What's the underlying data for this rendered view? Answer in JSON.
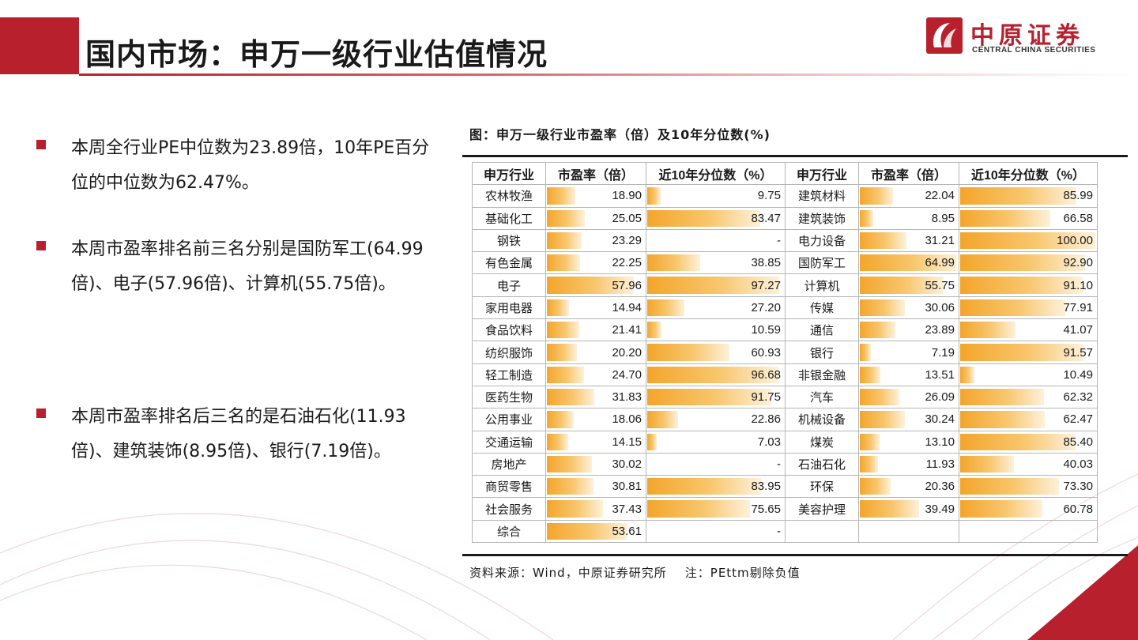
{
  "header": {
    "title": "国内市场：申万一级行业估值情况",
    "logo_cn": "中原证券",
    "logo_en": "CENTRAL CHINA SECURITIES"
  },
  "bullets": [
    "本周全行业PE中位数为23.89倍，10年PE百分位的中位数为62.47%。",
    "本周市盈率排名前三名分别是国防军工(64.99倍)、电子(57.96倍)、计算机(55.75倍)。",
    "本周市盈率排名后三名的是石油石化(11.93倍)、建筑装饰(8.95倍)、银行(7.19倍)。"
  ],
  "figure": {
    "title": "图：申万一级行业市盈率（倍）及10年分位数(%)",
    "source": "资料来源：Wind，中原证券研究所    注：PEttm剔除负值",
    "headers": [
      "申万行业",
      "市盈率（倍）",
      "近10年分位数（%）",
      "申万行业",
      "市盈率（倍）",
      "近10年分位数（%）"
    ],
    "pe_max": 64.99,
    "pct_max": 100,
    "left": [
      {
        "name": "农林牧渔",
        "pe": "18.90",
        "pct": "9.75"
      },
      {
        "name": "基础化工",
        "pe": "25.05",
        "pct": "83.47"
      },
      {
        "name": "钢铁",
        "pe": "23.29",
        "pct": "-"
      },
      {
        "name": "有色金属",
        "pe": "22.25",
        "pct": "38.85"
      },
      {
        "name": "电子",
        "pe": "57.96",
        "pct": "97.27"
      },
      {
        "name": "家用电器",
        "pe": "14.94",
        "pct": "27.20"
      },
      {
        "name": "食品饮料",
        "pe": "21.41",
        "pct": "10.59"
      },
      {
        "name": "纺织服饰",
        "pe": "20.20",
        "pct": "60.93"
      },
      {
        "name": "轻工制造",
        "pe": "24.70",
        "pct": "96.68"
      },
      {
        "name": "医药生物",
        "pe": "31.83",
        "pct": "91.75"
      },
      {
        "name": "公用事业",
        "pe": "18.06",
        "pct": "22.86"
      },
      {
        "name": "交通运输",
        "pe": "14.15",
        "pct": "7.03"
      },
      {
        "name": "房地产",
        "pe": "30.02",
        "pct": "-"
      },
      {
        "name": "商贸零售",
        "pe": "30.81",
        "pct": "83.95"
      },
      {
        "name": "社会服务",
        "pe": "37.43",
        "pct": "75.65"
      },
      {
        "name": "综合",
        "pe": "53.61",
        "pct": "-"
      }
    ],
    "right": [
      {
        "name": "建筑材料",
        "pe": "22.04",
        "pct": "85.99"
      },
      {
        "name": "建筑装饰",
        "pe": "8.95",
        "pct": "66.58"
      },
      {
        "name": "电力设备",
        "pe": "31.21",
        "pct": "100.00"
      },
      {
        "name": "国防军工",
        "pe": "64.99",
        "pct": "92.90"
      },
      {
        "name": "计算机",
        "pe": "55.75",
        "pct": "91.10"
      },
      {
        "name": "传媒",
        "pe": "30.06",
        "pct": "77.91"
      },
      {
        "name": "通信",
        "pe": "23.89",
        "pct": "41.07"
      },
      {
        "name": "银行",
        "pe": "7.19",
        "pct": "91.57"
      },
      {
        "name": "非银金融",
        "pe": "13.51",
        "pct": "10.49"
      },
      {
        "name": "汽车",
        "pe": "26.09",
        "pct": "62.32"
      },
      {
        "name": "机械设备",
        "pe": "30.24",
        "pct": "62.47"
      },
      {
        "name": "煤炭",
        "pe": "13.10",
        "pct": "85.40"
      },
      {
        "name": "石油石化",
        "pe": "11.93",
        "pct": "40.03"
      },
      {
        "name": "环保",
        "pe": "20.36",
        "pct": "73.30"
      },
      {
        "name": "美容护理",
        "pe": "39.49",
        "pct": "60.78"
      },
      {
        "name": "",
        "pe": "",
        "pct": ""
      }
    ]
  },
  "colors": {
    "brand_red": "#b8202e",
    "bar_orange": "#f3a52b"
  }
}
